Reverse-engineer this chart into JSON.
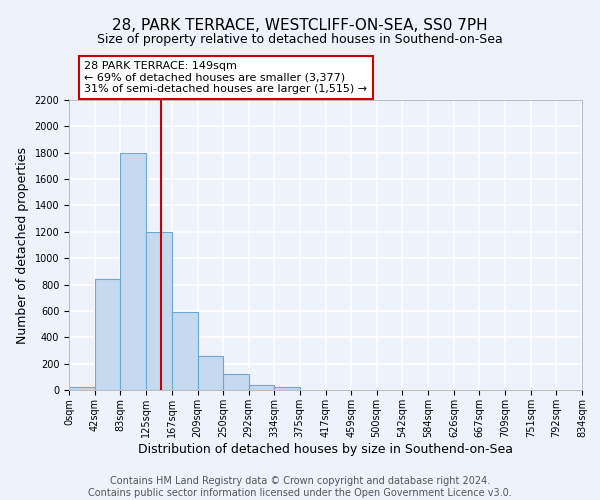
{
  "title": "28, PARK TERRACE, WESTCLIFF-ON-SEA, SS0 7PH",
  "subtitle": "Size of property relative to detached houses in Southend-on-Sea",
  "xlabel": "Distribution of detached houses by size in Southend-on-Sea",
  "ylabel": "Number of detached properties",
  "bin_edges": [
    0,
    42,
    83,
    125,
    167,
    209,
    250,
    292,
    334,
    375,
    417,
    459,
    500,
    542,
    584,
    626,
    667,
    709,
    751,
    792,
    834
  ],
  "bin_labels": [
    "0sqm",
    "42sqm",
    "83sqm",
    "125sqm",
    "167sqm",
    "209sqm",
    "250sqm",
    "292sqm",
    "334sqm",
    "375sqm",
    "417sqm",
    "459sqm",
    "500sqm",
    "542sqm",
    "584sqm",
    "626sqm",
    "667sqm",
    "709sqm",
    "751sqm",
    "792sqm",
    "834sqm"
  ],
  "counts": [
    25,
    840,
    1800,
    1200,
    590,
    255,
    125,
    40,
    25,
    0,
    0,
    0,
    0,
    0,
    0,
    0,
    0,
    0,
    0,
    0
  ],
  "bar_color": "#c5d9ef",
  "bar_edge_color": "#6fa8d4",
  "annotation_box_text": "28 PARK TERRACE: 149sqm\n← 69% of detached houses are smaller (3,377)\n31% of semi-detached houses are larger (1,515) →",
  "annotation_box_color": "#ffffff",
  "annotation_box_edge_color": "#cc0000",
  "property_line_color": "#cc0000",
  "property_line_x": 149,
  "ylim": [
    0,
    2200
  ],
  "yticks": [
    0,
    200,
    400,
    600,
    800,
    1000,
    1200,
    1400,
    1600,
    1800,
    2000,
    2200
  ],
  "footer_line1": "Contains HM Land Registry data © Crown copyright and database right 2024.",
  "footer_line2": "Contains public sector information licensed under the Open Government Licence v3.0.",
  "background_color": "#eef2fa",
  "grid_color": "#ffffff",
  "title_fontsize": 11,
  "subtitle_fontsize": 9,
  "axis_label_fontsize": 9,
  "tick_fontsize": 7,
  "annotation_fontsize": 8,
  "footer_fontsize": 7
}
